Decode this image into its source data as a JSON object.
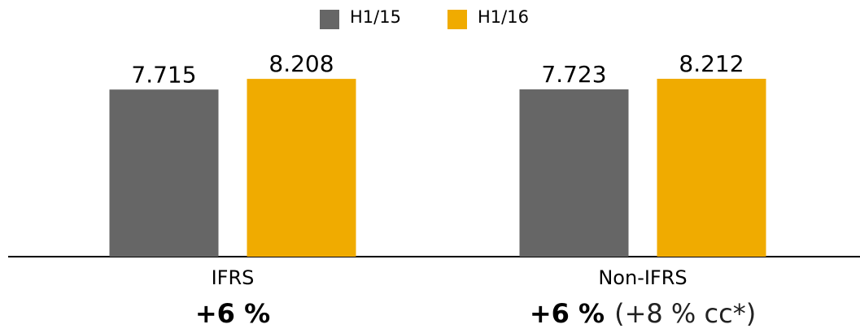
{
  "chart_data": {
    "type": "bar",
    "categories": [
      "IFRS",
      "Non-IFRS"
    ],
    "series": [
      {
        "name": "H1/15",
        "color": "#666666",
        "values": [
          7.715,
          7.723
        ]
      },
      {
        "name": "H1/16",
        "color": "#f0ab00",
        "values": [
          8.208,
          8.212
        ]
      }
    ],
    "group_notes": [
      {
        "change": "+6 %"
      },
      {
        "change": "+6 %",
        "detail": "(+8 % cc*)"
      }
    ]
  }
}
